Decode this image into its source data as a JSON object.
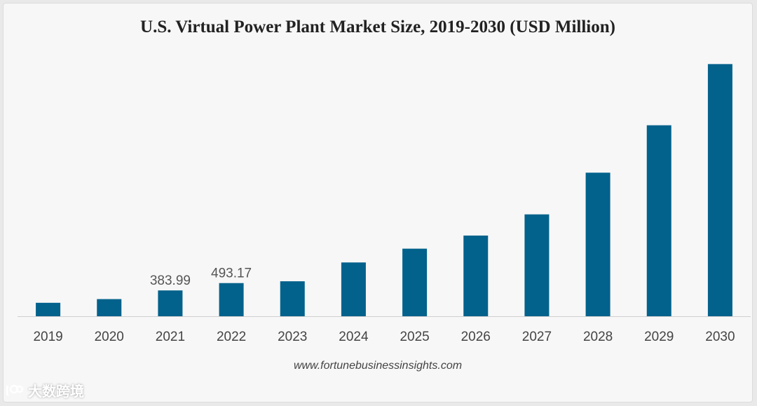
{
  "chart_data": {
    "type": "bar",
    "title": "U.S. Virtual Power Plant Market Size, 2019-2030 (USD Million)",
    "categories": [
      "2019",
      "2020",
      "2021",
      "2022",
      "2023",
      "2024",
      "2025",
      "2026",
      "2027",
      "2028",
      "2029",
      "2030"
    ],
    "values": [
      200,
      255,
      383.99,
      493.17,
      520,
      800,
      1005,
      1200,
      1515,
      2135,
      2840,
      3750
    ],
    "data_labels": {
      "2021": "383.99",
      "2022": "493.17"
    },
    "ylim": [
      0,
      3900
    ],
    "grid": false,
    "bar_color": "#02628c",
    "source": "www.fortunebusinessinsights.com"
  },
  "watermark": {
    "text": "大数跨境",
    "icon": "logo-icon"
  }
}
